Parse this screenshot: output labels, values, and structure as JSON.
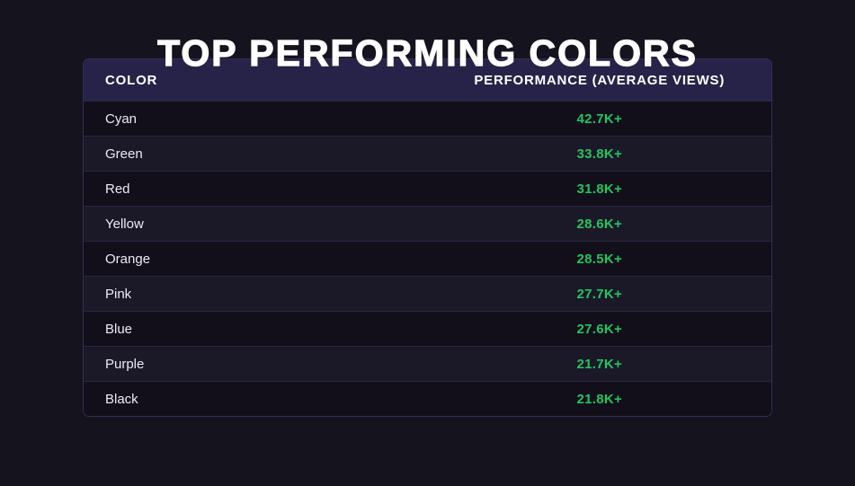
{
  "page": {
    "title": "TOP PERFORMING COLORS"
  },
  "table": {
    "columns": [
      {
        "id": "color",
        "label": "COLOR"
      },
      {
        "id": "performance",
        "label": "PERFORMANCE (AVERAGE VIEWS)"
      }
    ],
    "rows": [
      {
        "color": "Cyan",
        "performance": "42.7K+"
      },
      {
        "color": "Green",
        "performance": "33.8K+"
      },
      {
        "color": "Red",
        "performance": "31.8K+"
      },
      {
        "color": "Yellow",
        "performance": "28.6K+"
      },
      {
        "color": "Orange",
        "performance": "28.5K+"
      },
      {
        "color": "Pink",
        "performance": "27.7K+"
      },
      {
        "color": "Blue",
        "performance": "27.6K+"
      },
      {
        "color": "Purple",
        "performance": "21.7K+"
      },
      {
        "color": "Black",
        "performance": "21.8K+"
      }
    ]
  },
  "chart_data": {
    "type": "table",
    "title": "TOP PERFORMING COLORS",
    "columns": [
      "COLOR",
      "PERFORMANCE (AVERAGE VIEWS)"
    ],
    "categories": [
      "Cyan",
      "Green",
      "Red",
      "Yellow",
      "Orange",
      "Pink",
      "Blue",
      "Purple",
      "Black"
    ],
    "values": [
      42700,
      33800,
      31800,
      28600,
      28500,
      27700,
      27600,
      21700,
      21800
    ],
    "value_labels": [
      "42.7K+",
      "33.8K+",
      "31.8K+",
      "28.6K+",
      "28.5K+",
      "27.7K+",
      "27.6K+",
      "21.7K+",
      "21.8K+"
    ],
    "ylabel": "Average Views"
  },
  "theme": {
    "accent_green": "#22c55e",
    "page_background": "#15131d",
    "header_background": "#272348",
    "row_dark": "#120f1b",
    "row_light": "#1b1828",
    "title_color": "#ffffff"
  }
}
